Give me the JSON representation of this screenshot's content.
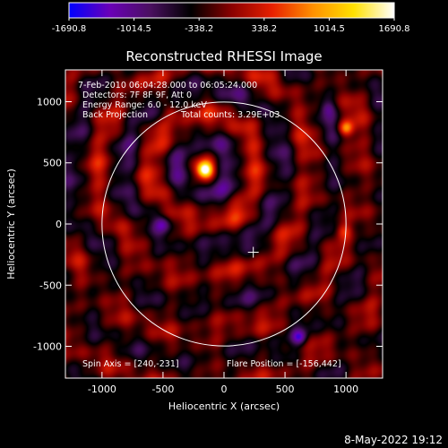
{
  "chart_data": {
    "type": "heatmap",
    "title": "Reconstructed RHESSI Image",
    "xlabel": "Heliocentric X (arcsec)",
    "ylabel": "Heliocentric Y (arcsec)",
    "xlim": [
      -1300,
      1300
    ],
    "ylim": [
      -1260,
      1260
    ],
    "x_ticks": [
      -1000,
      -500,
      0,
      500,
      1000
    ],
    "x_tick_labels": [
      "-1000",
      "-500",
      "0",
      "500",
      "1000"
    ],
    "y_ticks": [
      1000,
      500,
      0,
      -500,
      -1000
    ],
    "y_tick_labels": [
      "1000",
      "500",
      "0",
      "-500",
      "-1000"
    ],
    "colorbar": {
      "min": -1690.8,
      "max": 1690.8,
      "tick_values": [
        -1690.8,
        -1014.5,
        -338.2,
        338.2,
        1014.5,
        1690.8
      ],
      "tick_labels": [
        "-1690.8",
        "-1014.5",
        "-338.2",
        "338.2",
        "1014.5",
        "1690.8"
      ],
      "colors": [
        "#0000ff",
        "#6a00b8",
        "#4a1060",
        "#000000",
        "#8a0000",
        "#e82000",
        "#ff9000",
        "#ffe000",
        "#ffffff"
      ]
    },
    "annotations": [
      "7-Feb-2010 06:04:28.000 to 06:05:24.000",
      "Detectors: 7F 8F 9F, Att 0",
      "Energy Range: 6.0 - 12.0 keV",
      "Back Projection",
      "Total counts: 3.29E+03",
      "Spin Axis = [240,-231]",
      "Flare Position = [-156,442]"
    ],
    "solar_limb_radius": 1000,
    "solar_limb_center": [
      0,
      0
    ],
    "spin_axis": [
      240,
      -231
    ],
    "flare_position": [
      -156,
      442
    ],
    "sources": [
      {
        "x": -156,
        "y": 442,
        "value": 1690.8
      },
      {
        "x": 1000,
        "y": 780,
        "value": 1100
      },
      {
        "x": 980,
        "y": -60,
        "value": 700
      },
      {
        "x": -430,
        "y": 920,
        "value": 600
      },
      {
        "x": 620,
        "y": -930,
        "value": -1000
      },
      {
        "x": -500,
        "y": 0,
        "value": -700
      },
      {
        "x": 850,
        "y": 950,
        "value": -500
      }
    ]
  },
  "footer": {
    "date": "8-May-2022 19:12"
  }
}
